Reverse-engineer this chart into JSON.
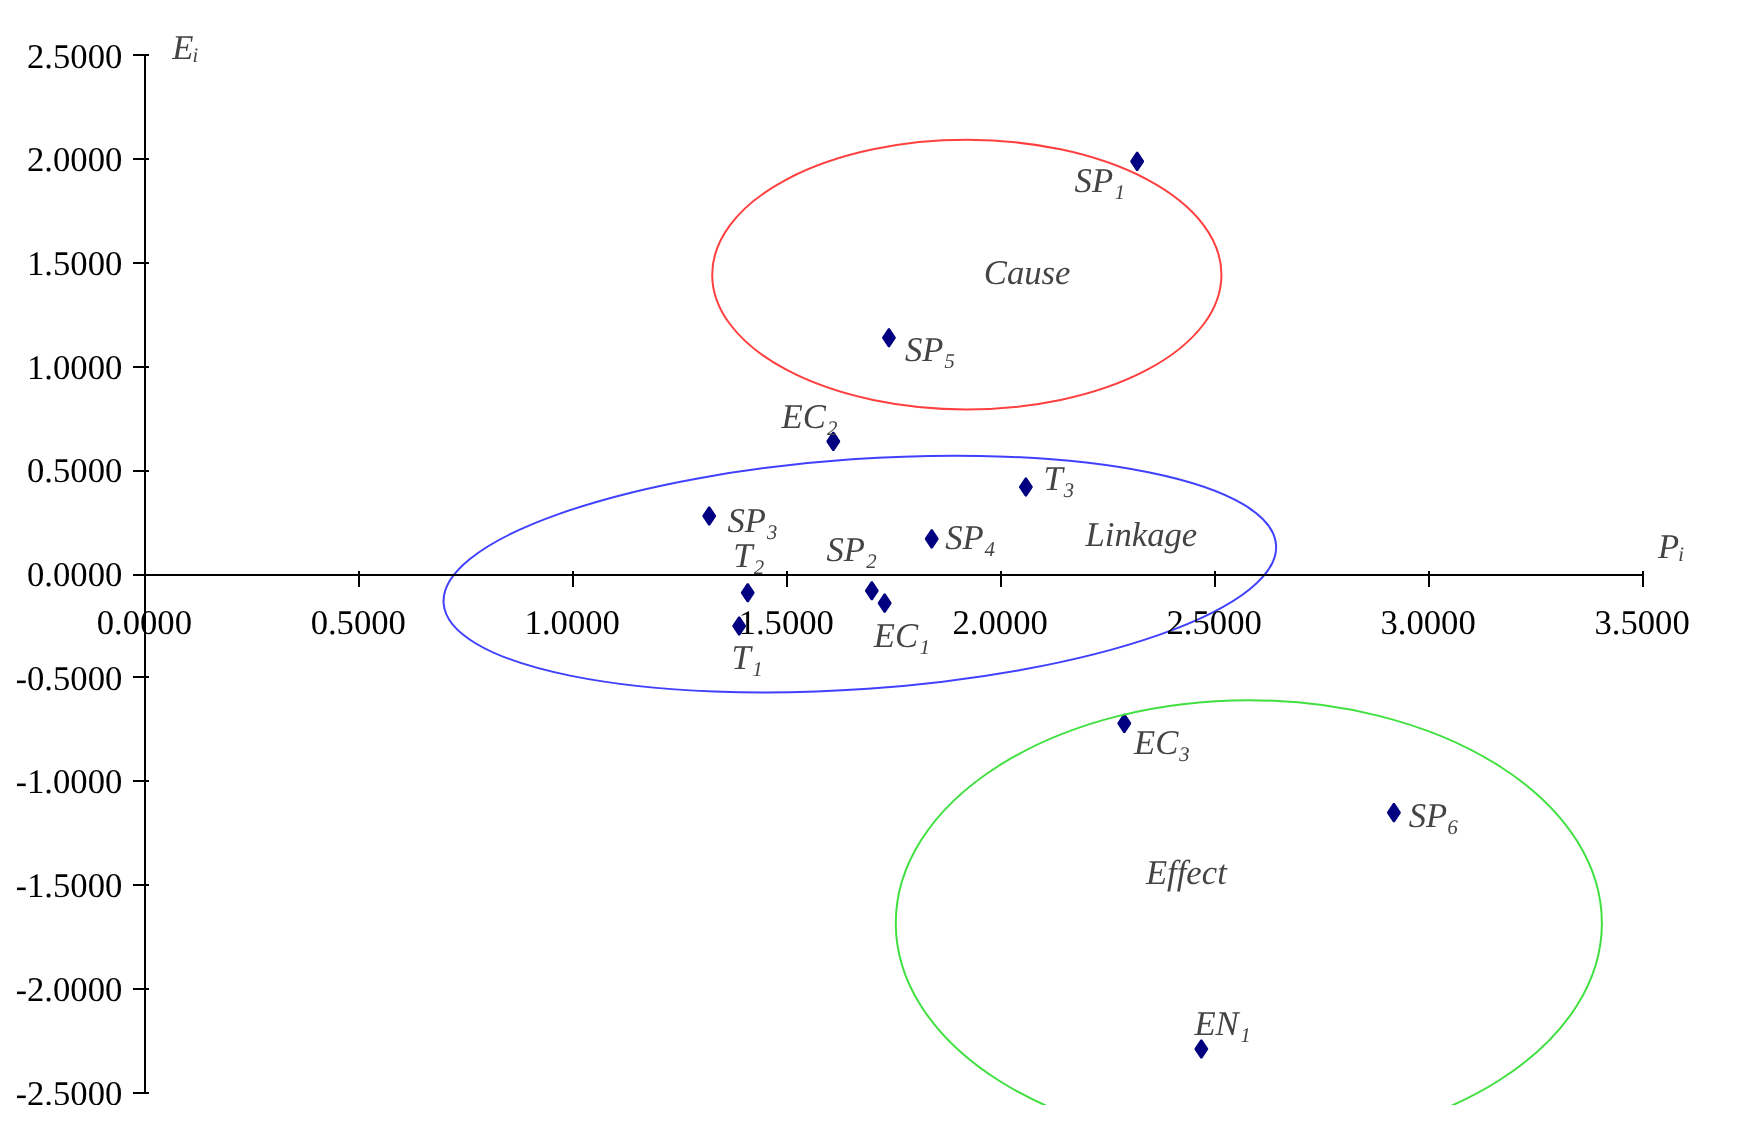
{
  "chart_data": {
    "type": "scatter",
    "xlabel": "Pᵢ",
    "ylabel": "Eᵢ",
    "marker": "diamond",
    "grid": false,
    "x": [
      2.32,
      1.74,
      1.61,
      2.06,
      1.32,
      1.84,
      1.41,
      1.7,
      1.73,
      1.39,
      2.29,
      2.92,
      2.47
    ],
    "series": [
      {
        "color": "#000080",
        "values": [
          1.99,
          1.14,
          0.64,
          0.42,
          0.28,
          0.17,
          -0.09,
          -0.08,
          -0.14,
          -0.25,
          -0.72,
          -1.15,
          -2.29
        ]
      }
    ],
    "xlim": [
      0,
      3.5
    ],
    "ylim": [
      -2.5,
      2.5
    ],
    "xticks": [
      {
        "value": 0,
        "label": "0.0000"
      },
      {
        "value": 0.5,
        "label": "0.5000"
      },
      {
        "value": 1,
        "label": "1.0000"
      },
      {
        "value": 1.5,
        "label": "1.5000"
      },
      {
        "value": 2,
        "label": "2.0000"
      },
      {
        "value": 2.5,
        "label": "2.5000"
      },
      {
        "value": 3,
        "label": "3.0000"
      },
      {
        "value": 3.5,
        "label": "3.5000"
      }
    ],
    "yticks": [
      {
        "value": -2.5,
        "label": "-2.5000"
      },
      {
        "value": -2,
        "label": "-2.0000"
      },
      {
        "value": -1.5,
        "label": "-1.5000"
      },
      {
        "value": -1,
        "label": "-1.0000"
      },
      {
        "value": -0.5,
        "label": "-0.5000"
      },
      {
        "value": 0,
        "label": "0.0000"
      },
      {
        "value": 0.5,
        "label": "0.5000"
      },
      {
        "value": 1,
        "label": "1.0000"
      },
      {
        "value": 1.5,
        "label": "1.5000"
      },
      {
        "value": 2,
        "label": "2.0000"
      },
      {
        "value": 2.5,
        "label": "2.5000"
      }
    ],
    "annotations": [
      {
        "text": "SP₁",
        "x": 2.317,
        "y": 1.99
      },
      {
        "text": "SP₅",
        "x": 1.743,
        "y": 1.138
      },
      {
        "text": "EC₂",
        "x": 1.611,
        "y": 0.641
      },
      {
        "text": "T₃",
        "x": 2.063,
        "y": 0.421
      },
      {
        "text": "SP₃",
        "x": 1.319,
        "y": 0.277
      },
      {
        "text": "SP₄",
        "x": 1.837,
        "y": 0.172
      },
      {
        "text": "T₂",
        "x": 1.413,
        "y": -0.086
      },
      {
        "text": "SP₂",
        "x": 1.7,
        "y": -0.076
      },
      {
        "text": "EC₁",
        "x": 1.733,
        "y": -0.143
      },
      {
        "text": "T₁",
        "x": 1.39,
        "y": -0.249
      },
      {
        "text": "EC₃",
        "x": 2.285,
        "y": -0.717
      },
      {
        "text": "SP₆",
        "x": 2.92,
        "y": -1.147
      },
      {
        "text": "EN₁",
        "x": 2.473,
        "y": -2.285
      },
      "Cause",
      "Linkage",
      "Effect"
    ]
  }
}
